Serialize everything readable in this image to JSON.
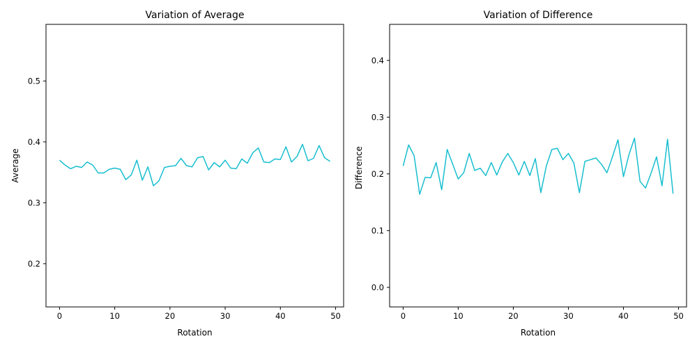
{
  "figure": {
    "color": "#17becf"
  },
  "chart_data": [
    {
      "type": "line",
      "title": "Variation of Average",
      "xlabel": "Rotation",
      "ylabel": "Average",
      "xlim": [
        -2.45,
        51.45
      ],
      "ylim": [
        0.129,
        0.593
      ],
      "xticks": [
        0,
        10,
        20,
        30,
        40,
        50
      ],
      "xtick_labels": [
        "0",
        "10",
        "20",
        "30",
        "40",
        "50"
      ],
      "yticks": [
        0.2,
        0.3,
        0.4,
        0.5
      ],
      "ytick_labels": [
        "0.2",
        "0.3",
        "0.4",
        "0.5"
      ],
      "grid": false,
      "series": [
        {
          "x": [
            0,
            1,
            2,
            3,
            4,
            5,
            6,
            7,
            8,
            9,
            10,
            11,
            12,
            13,
            14,
            15,
            16,
            17,
            18,
            19,
            20,
            21,
            22,
            23,
            24,
            25,
            26,
            27,
            28,
            29,
            30,
            31,
            32,
            33,
            34,
            35,
            36,
            37,
            38,
            39,
            40,
            41,
            42,
            43,
            44,
            45,
            46,
            47,
            48,
            49
          ],
          "values": [
            0.37,
            0.362,
            0.356,
            0.36,
            0.358,
            0.367,
            0.362,
            0.349,
            0.349,
            0.355,
            0.357,
            0.355,
            0.338,
            0.346,
            0.37,
            0.337,
            0.359,
            0.328,
            0.336,
            0.358,
            0.36,
            0.361,
            0.373,
            0.361,
            0.359,
            0.374,
            0.376,
            0.354,
            0.366,
            0.359,
            0.37,
            0.357,
            0.356,
            0.372,
            0.365,
            0.382,
            0.39,
            0.367,
            0.366,
            0.372,
            0.371,
            0.392,
            0.367,
            0.376,
            0.396,
            0.369,
            0.373,
            0.394,
            0.374,
            0.368
          ]
        }
      ]
    },
    {
      "type": "line",
      "title": "Variation of Difference",
      "xlabel": "Rotation",
      "ylabel": "Difference",
      "xlim": [
        -2.45,
        51.45
      ],
      "ylim": [
        -0.0345,
        0.4635
      ],
      "xticks": [
        0,
        10,
        20,
        30,
        40,
        50
      ],
      "xtick_labels": [
        "0",
        "10",
        "20",
        "30",
        "40",
        "50"
      ],
      "yticks": [
        0.0,
        0.1,
        0.2,
        0.3,
        0.4
      ],
      "ytick_labels": [
        "0.0",
        "0.1",
        "0.2",
        "0.3",
        "0.4"
      ],
      "grid": false,
      "series": [
        {
          "x": [
            0,
            1,
            2,
            3,
            4,
            5,
            6,
            7,
            8,
            9,
            10,
            11,
            12,
            13,
            14,
            15,
            16,
            17,
            18,
            19,
            20,
            21,
            22,
            23,
            24,
            25,
            26,
            27,
            28,
            29,
            30,
            31,
            32,
            33,
            34,
            35,
            36,
            37,
            38,
            39,
            40,
            41,
            42,
            43,
            44,
            45,
            46,
            47,
            48,
            49
          ],
          "values": [
            0.214,
            0.251,
            0.232,
            0.164,
            0.194,
            0.193,
            0.22,
            0.172,
            0.243,
            0.217,
            0.191,
            0.202,
            0.236,
            0.206,
            0.21,
            0.197,
            0.22,
            0.198,
            0.221,
            0.236,
            0.22,
            0.198,
            0.222,
            0.197,
            0.227,
            0.167,
            0.214,
            0.243,
            0.245,
            0.225,
            0.236,
            0.219,
            0.167,
            0.222,
            0.225,
            0.228,
            0.217,
            0.202,
            0.23,
            0.26,
            0.195,
            0.234,
            0.263,
            0.187,
            0.175,
            0.201,
            0.23,
            0.179,
            0.261,
            0.165
          ]
        }
      ]
    }
  ]
}
